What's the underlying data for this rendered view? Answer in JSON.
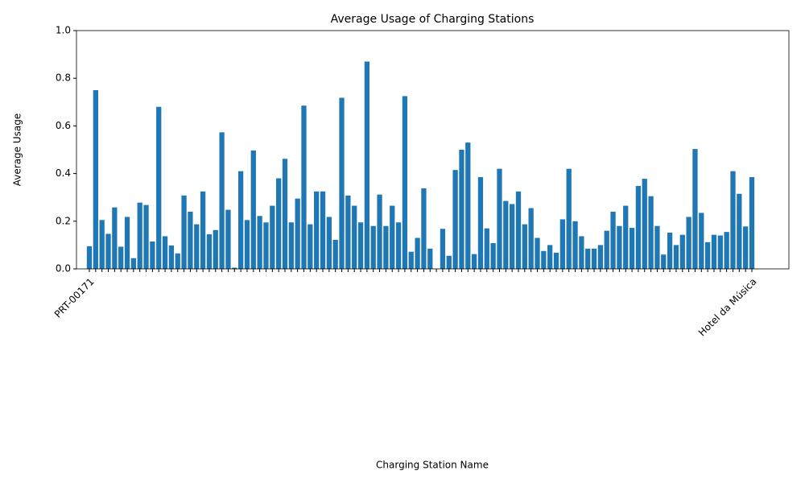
{
  "chart_data": {
    "type": "bar",
    "title": "Average Usage of Charging Stations",
    "xlabel": "Charging Station Name",
    "ylabel": "Average Usage",
    "color": "#1f77b4",
    "categories": [
      "PRT-00171",
      null,
      null,
      null,
      null,
      null,
      null,
      null,
      null,
      null,
      null,
      null,
      null,
      null,
      null,
      null,
      null,
      null,
      null,
      null,
      null,
      null,
      null,
      null,
      null,
      null,
      null,
      null,
      null,
      null,
      null,
      null,
      null,
      null,
      null,
      null,
      null,
      null,
      null,
      null,
      null,
      null,
      null,
      null,
      null,
      null,
      null,
      null,
      null,
      null,
      null,
      null,
      null,
      null,
      null,
      null,
      null,
      null,
      null,
      null,
      null,
      null,
      null,
      null,
      null,
      null,
      null,
      null,
      null,
      null,
      null,
      null,
      null,
      null,
      null,
      null,
      null,
      null,
      null,
      null,
      null,
      null,
      null,
      null,
      null,
      null,
      null,
      null,
      null,
      null,
      null,
      null,
      null,
      null,
      null,
      null,
      null,
      null,
      null,
      null,
      null,
      null,
      null,
      null,
      null,
      "Hotel da Música"
    ],
    "values": [
      0.095,
      0.75,
      0.205,
      0.147,
      0.258,
      0.093,
      0.218,
      0.045,
      0.278,
      0.268,
      0.115,
      0.68,
      0.137,
      0.098,
      0.065,
      0.308,
      0.24,
      0.187,
      0.325,
      0.145,
      0.163,
      0.573,
      0.248,
      0.005,
      0.41,
      0.205,
      0.497,
      0.222,
      0.195,
      0.265,
      0.38,
      0.462,
      0.195,
      0.295,
      0.685,
      0.187,
      0.325,
      0.325,
      0.218,
      0.122,
      0.718,
      0.308,
      0.265,
      0.195,
      0.87,
      0.18,
      0.312,
      0.18,
      0.265,
      0.195,
      0.725,
      0.072,
      0.13,
      0.338,
      0.085,
      0,
      0.168,
      0.055,
      0.415,
      0.5,
      0.53,
      0.062,
      0.385,
      0.17,
      0.108,
      0.42,
      0.285,
      0.272,
      0.325,
      0.187,
      0.255,
      0.13,
      0.075,
      0.1,
      0.068,
      0.208,
      0.42,
      0.2,
      0.137,
      0.085,
      0.085,
      0.1,
      0.16,
      0.24,
      0.18,
      0.265,
      0.172,
      0.348,
      0.378,
      0.305,
      0.18,
      0.06,
      0.152,
      0.1,
      0.143,
      0.218,
      0.503,
      0.235,
      0.112,
      0.143,
      0.14,
      0.155,
      0.41,
      0.315,
      0.178,
      0.385
    ],
    "ylim": [
      0,
      1
    ],
    "yticks": [
      {
        "value": 0,
        "label": "0.0"
      },
      {
        "value": 0.2,
        "label": "0.2"
      },
      {
        "value": 0.4,
        "label": "0.4"
      },
      {
        "value": 0.6,
        "label": "0.6"
      },
      {
        "value": 0.8,
        "label": "0.8"
      },
      {
        "value": 1,
        "label": "1.0"
      }
    ],
    "grid": false
  }
}
